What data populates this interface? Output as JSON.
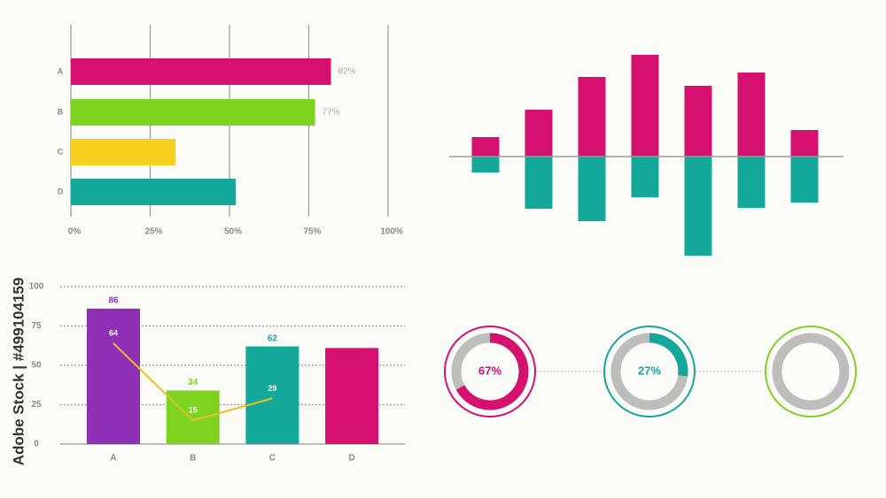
{
  "watermark": "Adobe Stock | #499104159",
  "chart_data": [
    {
      "type": "hbar",
      "categories": [
        "A",
        "B",
        "C",
        "D"
      ],
      "values": [
        82,
        77,
        33,
        52
      ],
      "value_labels": [
        "82%",
        "77%",
        null,
        null
      ],
      "colors": [
        "#d6106f",
        "#7ed321",
        "#f7d11e",
        "#14a89b"
      ],
      "xlim": [
        0,
        100
      ],
      "xticks": [
        {
          "value": 0,
          "label": "0%"
        },
        {
          "value": 25,
          "label": "25%"
        },
        {
          "value": 50,
          "label": "50%"
        },
        {
          "value": 75,
          "label": "75%"
        },
        {
          "value": 100,
          "label": "100%"
        }
      ],
      "grid": true
    },
    {
      "type": "diverging",
      "series": [
        {
          "color": "#d6106f",
          "values": [
            22,
            53,
            90,
            115,
            80,
            95,
            30
          ]
        },
        {
          "color": "#14a89b",
          "values": [
            -18,
            -59,
            -73,
            -46,
            -112,
            -58,
            -52
          ]
        }
      ],
      "ylim": [
        -115,
        120
      ]
    },
    {
      "type": "combo",
      "categories": [
        "A",
        "B",
        "C",
        "D"
      ],
      "series": [
        {
          "type": "bar",
          "colors": [
            "#8e2fb5",
            "#7ed321",
            "#14a89b",
            "#d6106f"
          ],
          "values": [
            86,
            34,
            62,
            61
          ],
          "value_labels": [
            "86",
            "34",
            "62",
            null
          ]
        },
        {
          "type": "line",
          "color": "#e9c01f",
          "values": [
            64,
            15,
            29,
            null
          ]
        }
      ],
      "ylim": [
        0,
        100
      ],
      "yticks": [
        0,
        25,
        50,
        75,
        100
      ],
      "grid": true
    },
    {
      "type": "donut",
      "values": [
        67,
        27,
        0
      ],
      "value_labels": [
        "67%",
        "27%",
        null
      ],
      "colors": [
        "#d6106f",
        "#14a89b",
        "#7ed321"
      ]
    }
  ]
}
